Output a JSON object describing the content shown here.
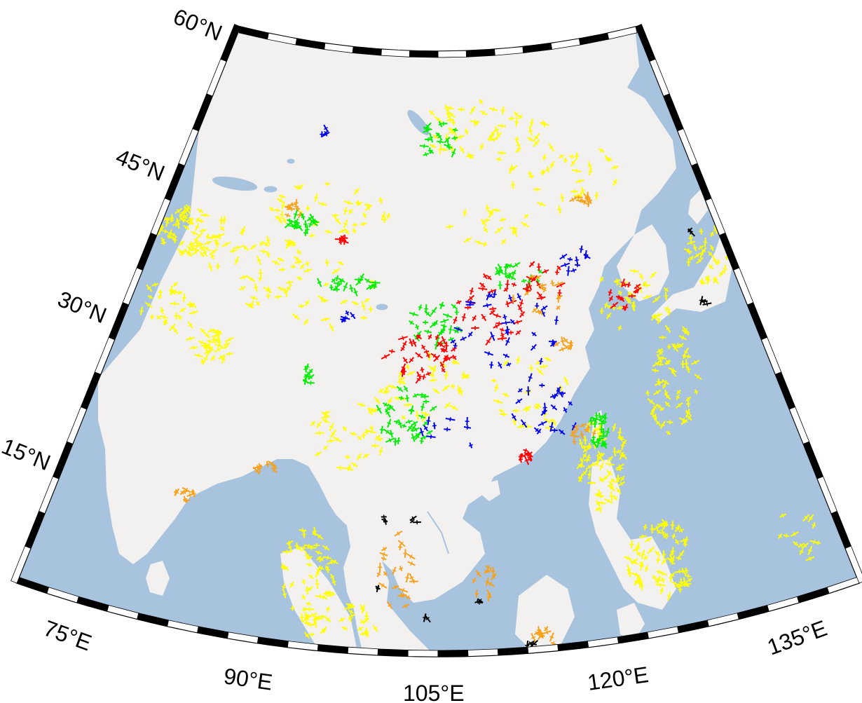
{
  "map": {
    "ocean_color": "#a8c3de",
    "land_color": "#f2f1ef",
    "frame_colors": [
      "#000000",
      "#ffffff"
    ],
    "latitude_labels": [
      {
        "id": "lat-60",
        "text": "60°N"
      },
      {
        "id": "lat-45",
        "text": "45°N"
      },
      {
        "id": "lat-30",
        "text": "30°N"
      },
      {
        "id": "lat-15",
        "text": "15°N"
      }
    ],
    "longitude_labels": [
      {
        "id": "lon-75",
        "text": "75°E"
      },
      {
        "id": "lon-90",
        "text": "90°E"
      },
      {
        "id": "lon-105",
        "text": "105°E"
      },
      {
        "id": "lon-120",
        "text": "120°E"
      },
      {
        "id": "lon-135",
        "text": "135°E"
      }
    ],
    "stress_symbol_colors": [
      {
        "name": "yellow",
        "hex": "#ffff00"
      },
      {
        "name": "orange",
        "hex": "#f7a11a"
      },
      {
        "name": "green",
        "hex": "#00ee00"
      },
      {
        "name": "red",
        "hex": "#ff0000"
      },
      {
        "name": "blue",
        "hex": "#0000ee"
      },
      {
        "name": "black",
        "hex": "#000000"
      }
    ]
  }
}
